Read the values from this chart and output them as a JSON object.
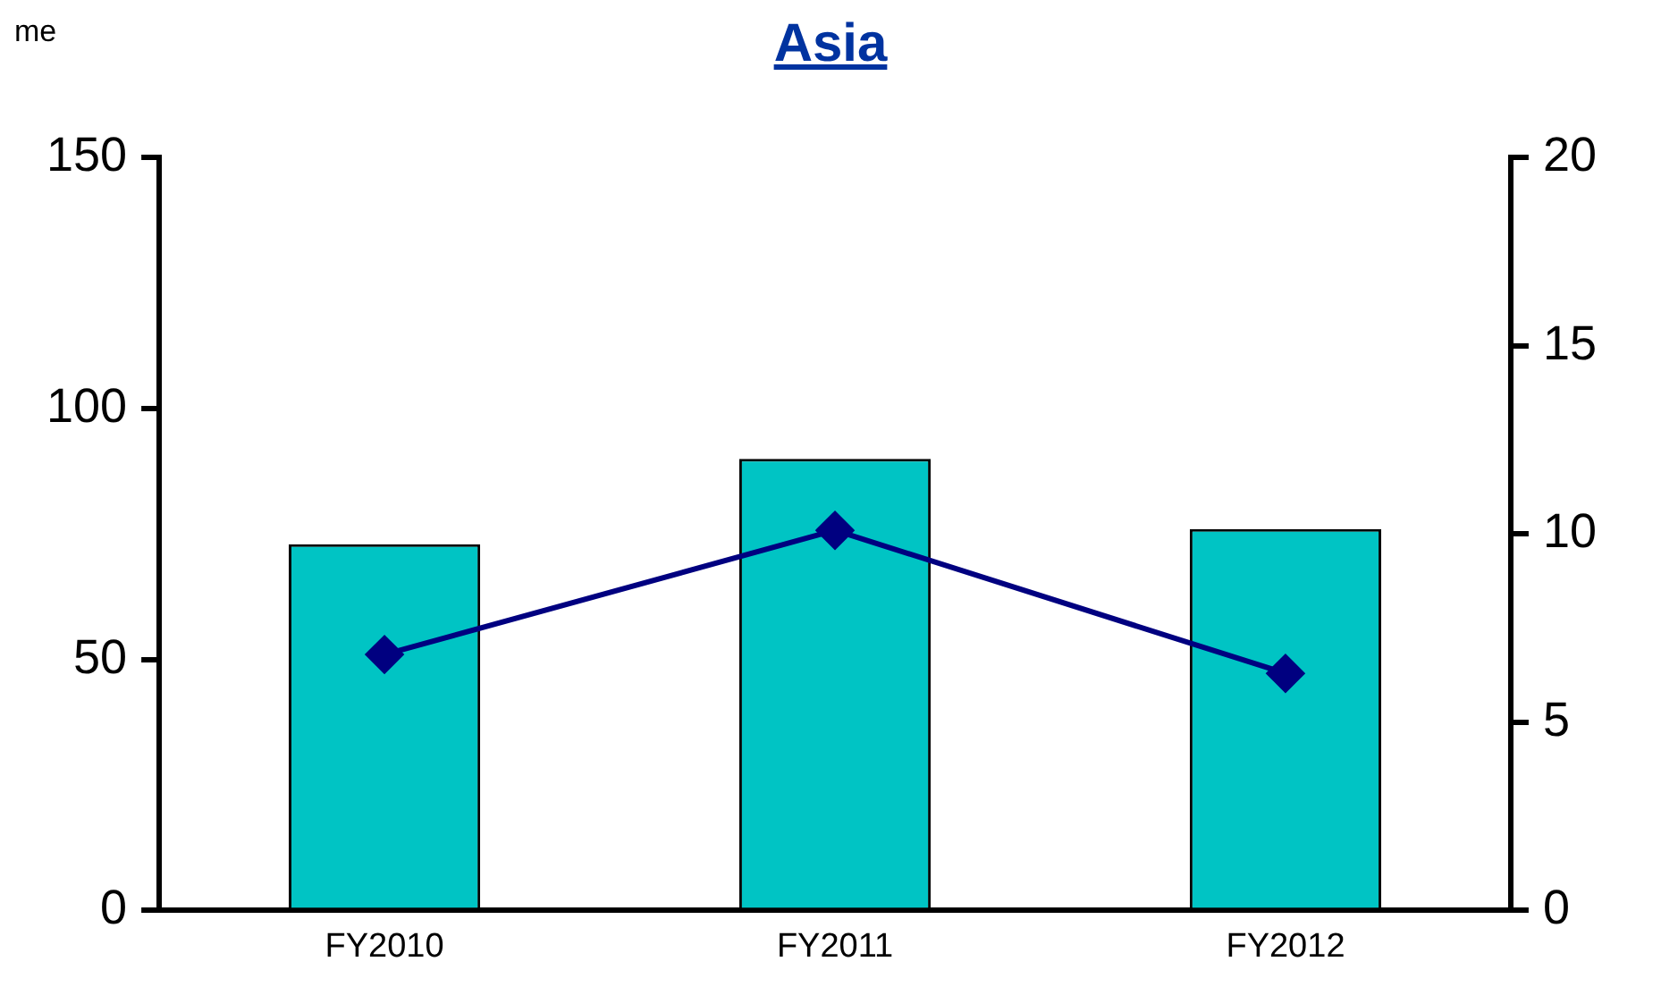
{
  "chart_data": {
    "type": "bar",
    "title": "Asia",
    "annotations": [
      "me"
    ],
    "categories": [
      "FY2010",
      "FY2011",
      "FY2012"
    ],
    "series": [
      {
        "color": "#00c4c4",
        "values": [
          73,
          90,
          76
        ]
      },
      {
        "type": "line",
        "axis": "y2",
        "color": "#000080",
        "values": [
          6.8,
          10.1,
          6.3
        ],
        "marker": "diamond"
      }
    ],
    "ylim": [
      0,
      150
    ],
    "yticks": [
      0,
      50,
      100,
      150
    ],
    "y2lim": [
      0,
      20
    ],
    "y2ticks": [
      0,
      5,
      10,
      15,
      20
    ],
    "grid": false,
    "legend": false
  }
}
